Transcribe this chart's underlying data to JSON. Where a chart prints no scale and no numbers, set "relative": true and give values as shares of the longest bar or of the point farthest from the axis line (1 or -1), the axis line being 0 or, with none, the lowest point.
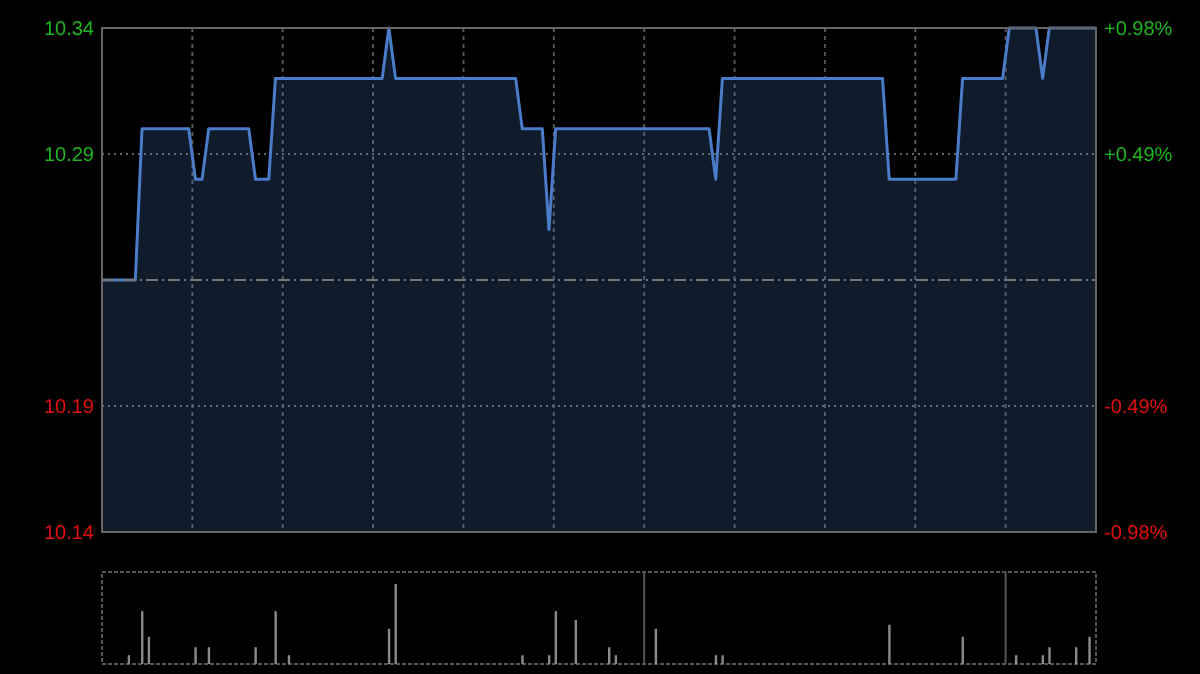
{
  "chart_data": [
    {
      "type": "area",
      "categories": [
        null,
        null,
        null,
        null,
        null,
        null,
        null,
        null,
        null,
        null,
        null,
        null,
        null,
        null,
        null,
        null,
        null,
        null,
        null,
        null,
        null,
        null,
        null,
        null,
        null,
        null,
        null,
        null,
        null,
        null,
        null,
        null,
        null,
        null,
        null,
        null,
        null,
        null,
        null,
        null,
        null,
        null,
        null,
        null,
        null,
        null,
        null,
        null,
        null,
        null,
        null,
        null,
        null,
        null,
        null,
        null,
        null,
        null,
        null,
        null,
        null,
        null,
        null,
        null,
        null,
        null,
        null,
        null,
        null,
        null,
        null,
        null,
        null,
        null,
        null,
        null,
        null,
        null,
        null,
        null,
        null,
        null,
        null,
        null,
        null,
        null,
        null,
        null,
        null,
        null,
        null,
        null,
        null,
        null,
        null,
        null,
        null,
        null,
        null,
        null,
        null,
        null,
        null,
        null,
        null,
        null,
        null,
        null,
        null,
        null,
        null,
        null,
        null,
        null,
        null,
        null,
        null,
        null,
        null,
        null,
        null,
        null,
        null,
        null,
        null,
        null,
        null,
        null,
        null,
        null,
        null,
        null,
        null,
        null,
        null,
        null,
        null,
        null,
        null,
        null,
        null,
        null,
        null,
        null,
        null,
        null,
        null,
        null,
        null,
        null
      ],
      "series": [
        {
          "color": "#4a7cc9",
          "values": [
            10.24,
            10.24,
            10.24,
            10.24,
            10.24,
            10.24,
            10.3,
            10.3,
            10.3,
            10.3,
            10.3,
            10.3,
            10.3,
            10.3,
            10.28,
            10.28,
            10.3,
            10.3,
            10.3,
            10.3,
            10.3,
            10.3,
            10.3,
            10.28,
            10.28,
            10.28,
            10.32,
            10.32,
            10.32,
            10.32,
            10.32,
            10.32,
            10.32,
            10.32,
            10.32,
            10.32,
            10.32,
            10.32,
            10.32,
            10.32,
            10.32,
            10.32,
            10.32,
            10.34,
            10.32,
            10.32,
            10.32,
            10.32,
            10.32,
            10.32,
            10.32,
            10.32,
            10.32,
            10.32,
            10.32,
            10.32,
            10.32,
            10.32,
            10.32,
            10.32,
            10.32,
            10.32,
            10.32,
            10.3,
            10.3,
            10.3,
            10.3,
            10.26,
            10.3,
            10.3,
            10.3,
            10.3,
            10.3,
            10.3,
            10.3,
            10.3,
            10.3,
            10.3,
            10.3,
            10.3,
            10.3,
            10.3,
            10.3,
            10.3,
            10.3,
            10.3,
            10.3,
            10.3,
            10.3,
            10.3,
            10.3,
            10.3,
            10.28,
            10.32,
            10.32,
            10.32,
            10.32,
            10.32,
            10.32,
            10.32,
            10.32,
            10.32,
            10.32,
            10.32,
            10.32,
            10.32,
            10.32,
            10.32,
            10.32,
            10.32,
            10.32,
            10.32,
            10.32,
            10.32,
            10.32,
            10.32,
            10.32,
            10.32,
            10.28,
            10.28,
            10.28,
            10.28,
            10.28,
            10.28,
            10.28,
            10.28,
            10.28,
            10.28,
            10.28,
            10.32,
            10.32,
            10.32,
            10.32,
            10.32,
            10.32,
            10.32,
            10.34,
            10.34,
            10.34,
            10.34,
            10.34,
            10.32,
            10.34,
            10.34,
            10.34,
            10.34,
            10.34,
            10.34,
            10.34,
            10.34
          ]
        }
      ],
      "ylim": [
        10.14,
        10.34
      ],
      "yticks": [
        10.14,
        10.19,
        10.29,
        10.34
      ],
      "y2lim": [
        -0.98,
        0.98
      ],
      "y2ticks": [
        {
          "value": -0.98,
          "label": "-0.98%"
        },
        {
          "value": -0.49,
          "label": "-0.49%"
        },
        {
          "value": 0.49,
          "label": "+0.49%"
        },
        {
          "value": 0.98,
          "label": "+0.98%"
        }
      ],
      "ref_lines": [
        {
          "axis": "y",
          "value": 10.24,
          "line_style": "dashed"
        }
      ],
      "grid": true
    },
    {
      "type": "bar",
      "relative": true,
      "categories": [
        null,
        null,
        null,
        null,
        null,
        null,
        null,
        null,
        null,
        null,
        null,
        null,
        null,
        null,
        null,
        null,
        null,
        null,
        null,
        null,
        null,
        null,
        null,
        null,
        null,
        null,
        null,
        null,
        null,
        null,
        null,
        null,
        null,
        null,
        null,
        null,
        null,
        null,
        null,
        null,
        null,
        null,
        null,
        null,
        null,
        null,
        null,
        null,
        null,
        null,
        null,
        null,
        null,
        null,
        null,
        null,
        null,
        null,
        null,
        null,
        null,
        null,
        null,
        null,
        null,
        null,
        null,
        null,
        null,
        null,
        null,
        null,
        null,
        null,
        null,
        null,
        null,
        null,
        null,
        null,
        null,
        null,
        null,
        null,
        null,
        null,
        null,
        null,
        null,
        null,
        null,
        null,
        null,
        null,
        null,
        null,
        null,
        null,
        null,
        null,
        null,
        null,
        null,
        null,
        null,
        null,
        null,
        null,
        null,
        null,
        null,
        null,
        null,
        null,
        null,
        null,
        null,
        null,
        null,
        null,
        null,
        null,
        null,
        null,
        null,
        null,
        null,
        null,
        null,
        null,
        null,
        null,
        null,
        null,
        null,
        null,
        null,
        null,
        null,
        null,
        null,
        null,
        null,
        null,
        null,
        null,
        null,
        null,
        null,
        null
      ],
      "color": "#8a8a8a",
      "values": [
        0,
        0,
        0,
        0,
        0.11,
        0,
        0.66,
        0.34,
        0,
        0,
        0,
        0,
        0,
        0,
        0.21,
        0,
        0.21,
        0,
        0,
        0,
        0,
        0,
        0,
        0.21,
        0,
        0,
        0.66,
        0,
        0.11,
        0,
        0,
        0,
        0,
        0,
        0,
        0,
        0,
        0,
        0,
        0,
        0,
        0,
        0,
        0.44,
        1,
        0,
        0,
        0,
        0,
        0,
        0,
        0,
        0,
        0,
        0,
        0,
        0,
        0,
        0,
        0,
        0,
        0,
        0,
        0.11,
        0,
        0,
        0,
        0.11,
        0.66,
        0,
        0,
        0.55,
        0,
        0,
        0,
        0,
        0.21,
        0.11,
        0,
        0,
        0,
        0,
        0,
        0.44,
        0,
        0,
        0,
        0,
        0,
        0,
        0,
        0,
        0.11,
        0.11,
        0,
        0,
        0,
        0,
        0,
        0,
        0,
        0,
        0,
        0,
        0,
        0,
        0,
        0,
        0,
        0,
        0,
        0,
        0,
        0,
        0,
        0,
        0,
        0,
        0.49,
        0,
        0,
        0,
        0,
        0,
        0,
        0,
        0,
        0,
        0,
        0.34,
        0,
        0,
        0,
        0,
        0,
        0,
        0,
        0.11,
        0,
        0,
        0,
        0.11,
        0.21,
        0,
        0,
        0,
        0.21,
        0,
        0.34,
        0
      ],
      "grid": true
    }
  ]
}
